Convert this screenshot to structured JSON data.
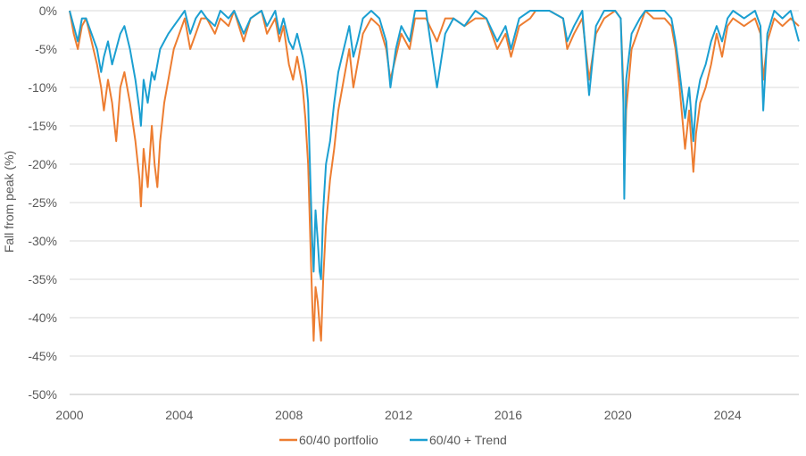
{
  "chart_data": {
    "type": "line",
    "title": "",
    "xlabel": "",
    "ylabel": "Fall from peak (%)",
    "xlim": [
      2000,
      2026.6
    ],
    "ylim": [
      -50,
      0
    ],
    "y_ticks": [
      0,
      -5,
      -10,
      -15,
      -20,
      -25,
      -30,
      -35,
      -40,
      -45,
      -50
    ],
    "y_tick_labels": [
      "0%",
      "-5%",
      "-10%",
      "-15%",
      "-20%",
      "-25%",
      "-30%",
      "-35%",
      "-40%",
      "-45%",
      "-50%"
    ],
    "x_ticks": [
      2000,
      2004,
      2008,
      2012,
      2016,
      2020,
      2024
    ],
    "x_tick_labels": [
      "2000",
      "2004",
      "2008",
      "2012",
      "2016",
      "2020",
      "2024"
    ],
    "grid": "horizontal",
    "legend_position": "bottom",
    "series": [
      {
        "name": "60/40 portfolio",
        "color": "#ED7D31",
        "points": [
          [
            2000.0,
            0
          ],
          [
            2000.15,
            -3
          ],
          [
            2000.3,
            -5
          ],
          [
            2000.45,
            -2
          ],
          [
            2000.6,
            -1
          ],
          [
            2000.8,
            -4
          ],
          [
            2001.0,
            -7
          ],
          [
            2001.15,
            -10
          ],
          [
            2001.25,
            -13
          ],
          [
            2001.4,
            -9
          ],
          [
            2001.55,
            -12
          ],
          [
            2001.7,
            -17
          ],
          [
            2001.85,
            -10
          ],
          [
            2002.0,
            -8
          ],
          [
            2002.2,
            -12
          ],
          [
            2002.4,
            -17
          ],
          [
            2002.55,
            -22
          ],
          [
            2002.6,
            -25.5
          ],
          [
            2002.7,
            -18
          ],
          [
            2002.85,
            -23
          ],
          [
            2003.0,
            -15
          ],
          [
            2003.1,
            -20
          ],
          [
            2003.2,
            -23
          ],
          [
            2003.3,
            -17
          ],
          [
            2003.45,
            -12
          ],
          [
            2003.6,
            -9
          ],
          [
            2003.8,
            -5
          ],
          [
            2004.0,
            -3
          ],
          [
            2004.2,
            -1
          ],
          [
            2004.4,
            -5
          ],
          [
            2004.6,
            -3
          ],
          [
            2004.8,
            -1
          ],
          [
            2005.0,
            -1
          ],
          [
            2005.3,
            -3
          ],
          [
            2005.5,
            -1
          ],
          [
            2005.8,
            -2
          ],
          [
            2006.0,
            0
          ],
          [
            2006.35,
            -4
          ],
          [
            2006.6,
            -1
          ],
          [
            2007.0,
            0
          ],
          [
            2007.2,
            -3
          ],
          [
            2007.5,
            -1
          ],
          [
            2007.65,
            -4
          ],
          [
            2007.8,
            -2
          ],
          [
            2008.0,
            -7
          ],
          [
            2008.15,
            -9
          ],
          [
            2008.3,
            -6
          ],
          [
            2008.5,
            -10
          ],
          [
            2008.6,
            -14
          ],
          [
            2008.7,
            -20
          ],
          [
            2008.78,
            -30
          ],
          [
            2008.85,
            -38
          ],
          [
            2008.9,
            -43
          ],
          [
            2008.97,
            -36
          ],
          [
            2009.05,
            -38
          ],
          [
            2009.12,
            -41
          ],
          [
            2009.17,
            -43
          ],
          [
            2009.25,
            -35
          ],
          [
            2009.35,
            -28
          ],
          [
            2009.5,
            -22
          ],
          [
            2009.65,
            -18
          ],
          [
            2009.8,
            -13
          ],
          [
            2010.0,
            -9
          ],
          [
            2010.2,
            -5
          ],
          [
            2010.35,
            -10
          ],
          [
            2010.5,
            -7
          ],
          [
            2010.7,
            -3
          ],
          [
            2011.0,
            -1
          ],
          [
            2011.3,
            -2
          ],
          [
            2011.55,
            -5
          ],
          [
            2011.7,
            -9
          ],
          [
            2011.9,
            -6
          ],
          [
            2012.1,
            -3
          ],
          [
            2012.4,
            -5
          ],
          [
            2012.6,
            -1
          ],
          [
            2013.0,
            -1
          ],
          [
            2013.4,
            -4
          ],
          [
            2013.7,
            -1
          ],
          [
            2014.0,
            -1
          ],
          [
            2014.4,
            -2
          ],
          [
            2014.8,
            -1
          ],
          [
            2015.2,
            -1
          ],
          [
            2015.6,
            -5
          ],
          [
            2015.9,
            -3
          ],
          [
            2016.1,
            -6
          ],
          [
            2016.4,
            -2
          ],
          [
            2016.8,
            -1
          ],
          [
            2017.0,
            0
          ],
          [
            2017.5,
            0
          ],
          [
            2018.0,
            -1
          ],
          [
            2018.15,
            -5
          ],
          [
            2018.4,
            -3
          ],
          [
            2018.7,
            -1
          ],
          [
            2018.95,
            -9
          ],
          [
            2019.2,
            -3
          ],
          [
            2019.5,
            -1
          ],
          [
            2019.9,
            0
          ],
          [
            2020.1,
            -1
          ],
          [
            2020.2,
            -10
          ],
          [
            2020.23,
            -22
          ],
          [
            2020.3,
            -13
          ],
          [
            2020.5,
            -5
          ],
          [
            2020.8,
            -2
          ],
          [
            2021.0,
            0
          ],
          [
            2021.3,
            -1
          ],
          [
            2021.7,
            -1
          ],
          [
            2021.95,
            -2
          ],
          [
            2022.1,
            -5
          ],
          [
            2022.25,
            -10
          ],
          [
            2022.45,
            -18
          ],
          [
            2022.6,
            -13
          ],
          [
            2022.75,
            -21
          ],
          [
            2022.85,
            -16
          ],
          [
            2023.0,
            -12
          ],
          [
            2023.2,
            -10
          ],
          [
            2023.4,
            -7
          ],
          [
            2023.6,
            -3
          ],
          [
            2023.8,
            -6
          ],
          [
            2024.0,
            -2
          ],
          [
            2024.2,
            -1
          ],
          [
            2024.6,
            -2
          ],
          [
            2025.0,
            -1
          ],
          [
            2025.2,
            -3
          ],
          [
            2025.3,
            -9
          ],
          [
            2025.45,
            -4
          ],
          [
            2025.7,
            -1
          ],
          [
            2026.0,
            -2
          ],
          [
            2026.3,
            -1
          ],
          [
            2026.6,
            -2
          ]
        ]
      },
      {
        "name": "60/40 + Trend",
        "color": "#1B9FD1",
        "points": [
          [
            2000.0,
            0
          ],
          [
            2000.15,
            -2
          ],
          [
            2000.3,
            -4
          ],
          [
            2000.45,
            -1
          ],
          [
            2000.6,
            -1
          ],
          [
            2000.8,
            -3
          ],
          [
            2001.0,
            -5
          ],
          [
            2001.15,
            -8
          ],
          [
            2001.25,
            -6
          ],
          [
            2001.4,
            -4
          ],
          [
            2001.55,
            -7
          ],
          [
            2001.7,
            -5
          ],
          [
            2001.85,
            -3
          ],
          [
            2002.0,
            -2
          ],
          [
            2002.2,
            -5
          ],
          [
            2002.4,
            -9
          ],
          [
            2002.55,
            -13
          ],
          [
            2002.6,
            -15
          ],
          [
            2002.7,
            -9
          ],
          [
            2002.85,
            -12
          ],
          [
            2003.0,
            -8
          ],
          [
            2003.1,
            -9
          ],
          [
            2003.2,
            -7
          ],
          [
            2003.3,
            -5
          ],
          [
            2003.45,
            -4
          ],
          [
            2003.6,
            -3
          ],
          [
            2003.8,
            -2
          ],
          [
            2004.0,
            -1
          ],
          [
            2004.2,
            0
          ],
          [
            2004.4,
            -3
          ],
          [
            2004.6,
            -1
          ],
          [
            2004.8,
            0
          ],
          [
            2005.0,
            -1
          ],
          [
            2005.3,
            -2
          ],
          [
            2005.5,
            0
          ],
          [
            2005.8,
            -1
          ],
          [
            2006.0,
            0
          ],
          [
            2006.35,
            -3
          ],
          [
            2006.6,
            -1
          ],
          [
            2007.0,
            0
          ],
          [
            2007.2,
            -2
          ],
          [
            2007.5,
            0
          ],
          [
            2007.65,
            -3
          ],
          [
            2007.8,
            -1
          ],
          [
            2008.0,
            -4
          ],
          [
            2008.15,
            -5
          ],
          [
            2008.3,
            -3
          ],
          [
            2008.5,
            -6
          ],
          [
            2008.6,
            -8
          ],
          [
            2008.7,
            -12
          ],
          [
            2008.78,
            -22
          ],
          [
            2008.85,
            -30
          ],
          [
            2008.9,
            -34
          ],
          [
            2008.97,
            -26
          ],
          [
            2009.05,
            -30
          ],
          [
            2009.12,
            -34
          ],
          [
            2009.17,
            -35
          ],
          [
            2009.25,
            -26
          ],
          [
            2009.35,
            -20
          ],
          [
            2009.5,
            -17
          ],
          [
            2009.65,
            -12
          ],
          [
            2009.8,
            -8
          ],
          [
            2010.0,
            -5
          ],
          [
            2010.2,
            -2
          ],
          [
            2010.35,
            -6
          ],
          [
            2010.5,
            -4
          ],
          [
            2010.7,
            -1
          ],
          [
            2011.0,
            0
          ],
          [
            2011.3,
            -1
          ],
          [
            2011.55,
            -4
          ],
          [
            2011.7,
            -10
          ],
          [
            2011.9,
            -5
          ],
          [
            2012.1,
            -2
          ],
          [
            2012.4,
            -4
          ],
          [
            2012.6,
            0
          ],
          [
            2013.0,
            0
          ],
          [
            2013.4,
            -10
          ],
          [
            2013.7,
            -3
          ],
          [
            2014.0,
            -1
          ],
          [
            2014.4,
            -2
          ],
          [
            2014.8,
            0
          ],
          [
            2015.2,
            -1
          ],
          [
            2015.6,
            -4
          ],
          [
            2015.9,
            -2
          ],
          [
            2016.1,
            -5
          ],
          [
            2016.4,
            -1
          ],
          [
            2016.8,
            0
          ],
          [
            2017.0,
            0
          ],
          [
            2017.5,
            0
          ],
          [
            2018.0,
            -1
          ],
          [
            2018.15,
            -4
          ],
          [
            2018.4,
            -2
          ],
          [
            2018.7,
            0
          ],
          [
            2018.95,
            -11
          ],
          [
            2019.2,
            -2
          ],
          [
            2019.5,
            0
          ],
          [
            2019.9,
            0
          ],
          [
            2020.1,
            -1
          ],
          [
            2020.2,
            -12
          ],
          [
            2020.23,
            -24.5
          ],
          [
            2020.3,
            -9
          ],
          [
            2020.5,
            -3
          ],
          [
            2020.8,
            -1
          ],
          [
            2021.0,
            0
          ],
          [
            2021.3,
            0
          ],
          [
            2021.7,
            0
          ],
          [
            2021.95,
            -1
          ],
          [
            2022.1,
            -4
          ],
          [
            2022.25,
            -8
          ],
          [
            2022.45,
            -14
          ],
          [
            2022.6,
            -10
          ],
          [
            2022.75,
            -17
          ],
          [
            2022.85,
            -12
          ],
          [
            2023.0,
            -9
          ],
          [
            2023.2,
            -7
          ],
          [
            2023.4,
            -4
          ],
          [
            2023.6,
            -2
          ],
          [
            2023.8,
            -4
          ],
          [
            2024.0,
            -1
          ],
          [
            2024.2,
            0
          ],
          [
            2024.6,
            -1
          ],
          [
            2025.0,
            0
          ],
          [
            2025.2,
            -2
          ],
          [
            2025.3,
            -13
          ],
          [
            2025.45,
            -3
          ],
          [
            2025.7,
            0
          ],
          [
            2026.0,
            -1
          ],
          [
            2026.3,
            0
          ],
          [
            2026.6,
            -4
          ]
        ]
      }
    ]
  }
}
